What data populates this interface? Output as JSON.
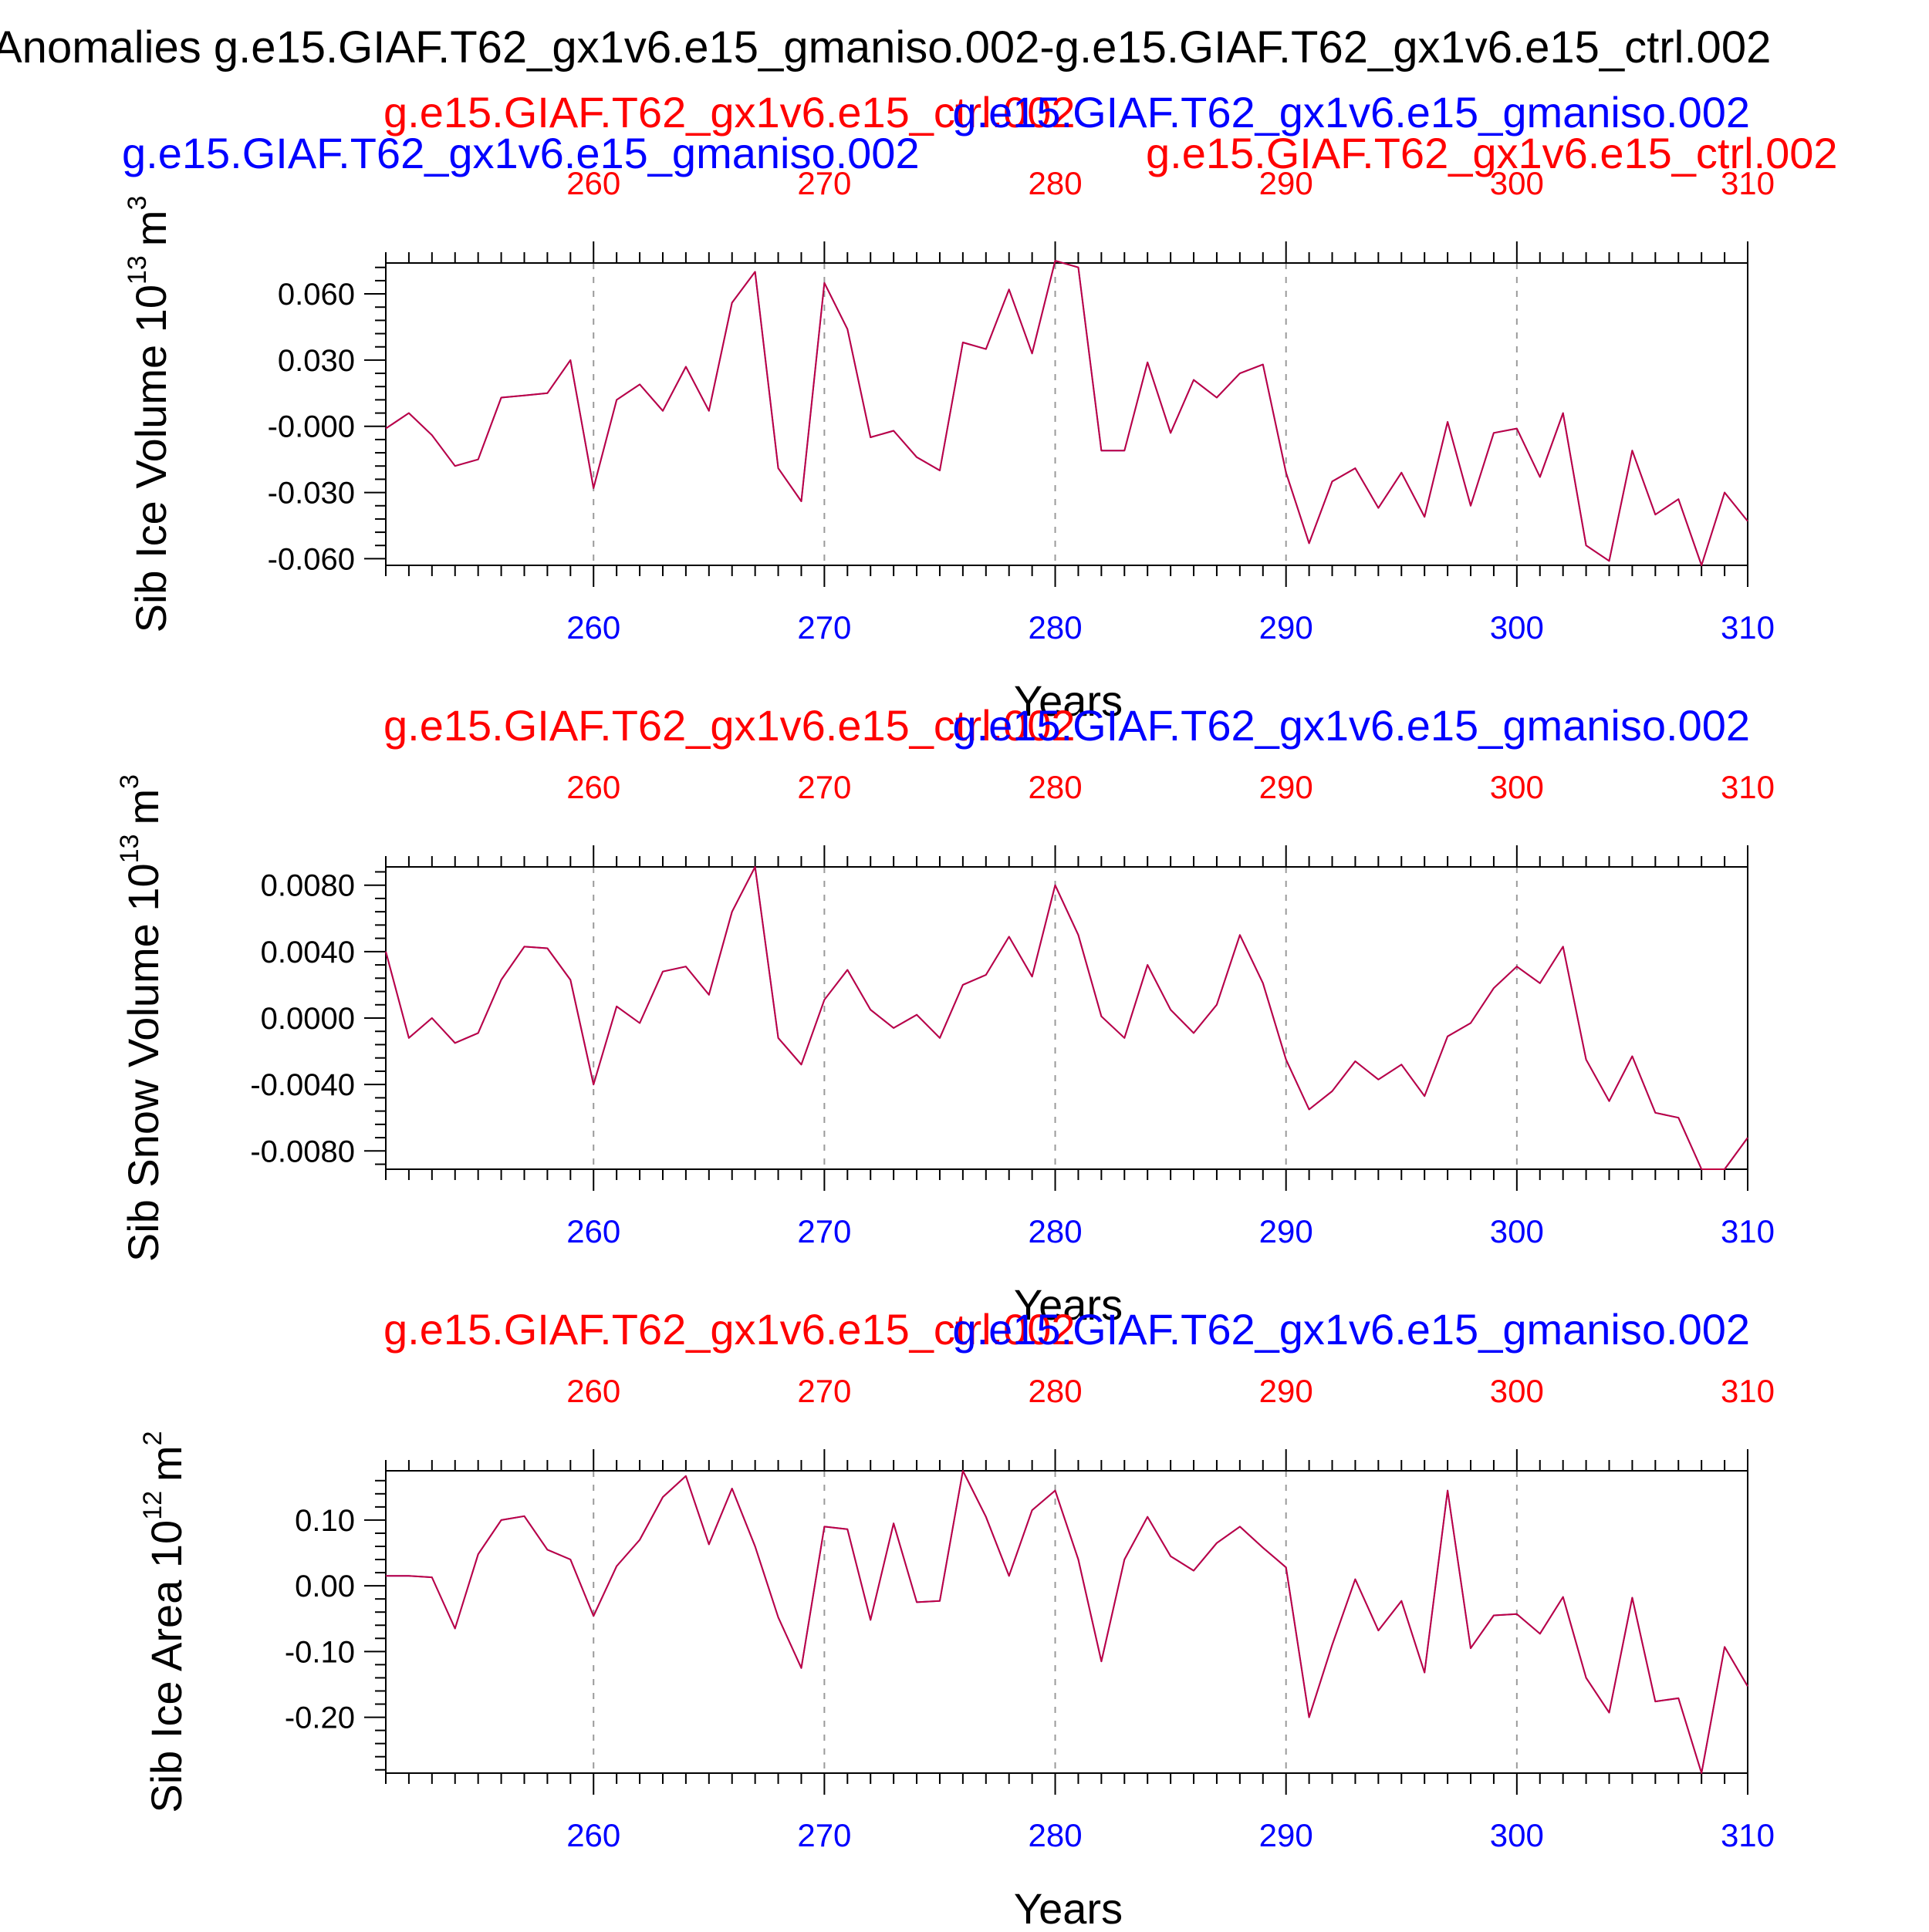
{
  "main_title": "Anomalies g.e15.GIAF.T62_gx1v6.e15_gmaniso.002-g.e15.GIAF.T62_gx1v6.e15_ctrl.002",
  "colors": {
    "case_a": "#0000ff",
    "case_b": "#ff0000",
    "line_a": "#0000ff",
    "line_b": "#ff0000",
    "axis": "#000000",
    "grid": "#9a9a9a"
  },
  "chart_data": [
    {
      "type": "line",
      "id": "ice-volume",
      "title_left": "g.e15.GIAF.T62_gx1v6.e15_gmaniso.002",
      "title_right": "g.e15.GIAF.T62_gx1v6.e15_ctrl.002",
      "top_title_red": "g.e15.GIAF.T62_gx1v6.e15_ctrl.002",
      "top_title_blue": "g.e15.GIAF.T62_gx1v6.e15_gmaniso.002",
      "ylabel_main": "Sib Ice Volume 10",
      "ylabel_exp": "13",
      "ylabel_unit": "m",
      "ylabel_unit_exp": "3",
      "xlabel": "Years",
      "xlim": [
        251,
        310
      ],
      "ylim": [
        -0.063,
        0.074
      ],
      "xticks": [
        260,
        270,
        280,
        290,
        300,
        310
      ],
      "xtick_labels": [
        "260",
        "270",
        "280",
        "290",
        "300",
        "310"
      ],
      "yticks": [
        0.06,
        0.03,
        0.0,
        -0.03,
        -0.06
      ],
      "ytick_labels": [
        "0.060",
        "0.030",
        "-0.000",
        "-0.030",
        "-0.060"
      ],
      "x": [
        251,
        252,
        253,
        254,
        255,
        256,
        257,
        258,
        259,
        260,
        261,
        262,
        263,
        264,
        265,
        266,
        267,
        268,
        269,
        270,
        271,
        272,
        273,
        274,
        275,
        276,
        277,
        278,
        279,
        280,
        281,
        282,
        283,
        284,
        285,
        286,
        287,
        288,
        289,
        290,
        291,
        292,
        293,
        294,
        295,
        296,
        297,
        298,
        299,
        300,
        301,
        302,
        303,
        304,
        305,
        306,
        307,
        308,
        309,
        310
      ],
      "series": [
        {
          "name": "g.e15.GIAF.T62_gx1v6.e15_gmaniso.002",
          "values": [
            -0.001,
            0.006,
            -0.004,
            -0.018,
            -0.015,
            0.013,
            0.014,
            0.015,
            0.03,
            -0.028,
            0.012,
            0.019,
            0.007,
            0.027,
            0.007,
            0.056,
            0.07,
            -0.019,
            -0.034,
            0.065,
            0.044,
            -0.005,
            -0.002,
            -0.014,
            -0.02,
            0.038,
            0.035,
            0.062,
            0.033,
            0.075,
            0.072,
            -0.011,
            -0.011,
            0.029,
            -0.003,
            0.021,
            0.013,
            0.024,
            0.028,
            -0.021,
            -0.053,
            -0.025,
            -0.019,
            -0.037,
            -0.021,
            -0.041,
            0.002,
            -0.036,
            -0.003,
            -0.001,
            -0.023,
            0.006,
            -0.054,
            -0.061,
            -0.011,
            -0.04,
            -0.033,
            -0.063,
            -0.03,
            -0.043
          ]
        },
        {
          "name": "g.e15.GIAF.T62_gx1v6.e15_ctrl.002",
          "values": [
            -0.001,
            0.006,
            -0.004,
            -0.018,
            -0.015,
            0.013,
            0.014,
            0.015,
            0.03,
            -0.028,
            0.012,
            0.019,
            0.007,
            0.027,
            0.007,
            0.056,
            0.07,
            -0.019,
            -0.034,
            0.065,
            0.044,
            -0.005,
            -0.002,
            -0.014,
            -0.02,
            0.038,
            0.035,
            0.062,
            0.033,
            0.075,
            0.072,
            -0.011,
            -0.011,
            0.029,
            -0.003,
            0.021,
            0.013,
            0.024,
            0.028,
            -0.021,
            -0.053,
            -0.025,
            -0.019,
            -0.037,
            -0.021,
            -0.041,
            0.002,
            -0.036,
            -0.003,
            -0.001,
            -0.023,
            0.006,
            -0.054,
            -0.061,
            -0.011,
            -0.04,
            -0.033,
            -0.063,
            -0.03,
            -0.043
          ]
        }
      ]
    },
    {
      "type": "line",
      "id": "snow-volume",
      "top_title_red": "g.e15.GIAF.T62_gx1v6.e15_ctrl.002",
      "top_title_blue": "g.e15.GIAF.T62_gx1v6.e15_gmaniso.002",
      "ylabel_main": "Sib Snow Volume 10",
      "ylabel_exp": "13",
      "ylabel_unit": "m",
      "ylabel_unit_exp": "3",
      "xlabel": "Years",
      "xlim": [
        251,
        310
      ],
      "ylim": [
        -0.0091,
        0.0091
      ],
      "xticks": [
        260,
        270,
        280,
        290,
        300,
        310
      ],
      "xtick_labels": [
        "260",
        "270",
        "280",
        "290",
        "300",
        "310"
      ],
      "yticks": [
        0.008,
        0.004,
        0.0,
        -0.004,
        -0.008
      ],
      "ytick_labels": [
        "0.0080",
        "0.0040",
        "0.0000",
        "-0.0040",
        "-0.0080"
      ],
      "x": [
        251,
        252,
        253,
        254,
        255,
        256,
        257,
        258,
        259,
        260,
        261,
        262,
        263,
        264,
        265,
        266,
        267,
        268,
        269,
        270,
        271,
        272,
        273,
        274,
        275,
        276,
        277,
        278,
        279,
        280,
        281,
        282,
        283,
        284,
        285,
        286,
        287,
        288,
        289,
        290,
        291,
        292,
        293,
        294,
        295,
        296,
        297,
        298,
        299,
        300,
        301,
        302,
        303,
        304,
        305,
        306,
        307,
        308,
        309,
        310
      ],
      "series": [
        {
          "name": "g.e15.GIAF.T62_gx1v6.e15_gmaniso.002",
          "values": [
            0.004,
            -0.0012,
            0.0,
            -0.0015,
            -0.0009,
            0.0023,
            0.0043,
            0.0042,
            0.0023,
            -0.004,
            0.0007,
            -0.0003,
            0.0028,
            0.0031,
            0.0014,
            0.0064,
            0.0091,
            -0.0012,
            -0.0028,
            0.0011,
            0.0029,
            0.0005,
            -0.0006,
            0.0002,
            -0.0012,
            0.002,
            0.0026,
            0.0049,
            0.0025,
            0.008,
            0.005,
            0.0001,
            -0.0012,
            0.0032,
            0.0005,
            -0.0009,
            0.0008,
            0.005,
            0.0021,
            -0.0025,
            -0.0055,
            -0.0044,
            -0.0026,
            -0.0037,
            -0.0028,
            -0.0047,
            -0.0011,
            -0.0003,
            0.0018,
            0.0031,
            0.0021,
            0.0043,
            -0.0025,
            -0.005,
            -0.0023,
            -0.0057,
            -0.006,
            -0.0091,
            -0.0091,
            -0.0072
          ]
        },
        {
          "name": "g.e15.GIAF.T62_gx1v6.e15_ctrl.002",
          "values": [
            0.004,
            -0.0012,
            0.0,
            -0.0015,
            -0.0009,
            0.0023,
            0.0043,
            0.0042,
            0.0023,
            -0.004,
            0.0007,
            -0.0003,
            0.0028,
            0.0031,
            0.0014,
            0.0064,
            0.0091,
            -0.0012,
            -0.0028,
            0.0011,
            0.0029,
            0.0005,
            -0.0006,
            0.0002,
            -0.0012,
            0.002,
            0.0026,
            0.0049,
            0.0025,
            0.008,
            0.005,
            0.0001,
            -0.0012,
            0.0032,
            0.0005,
            -0.0009,
            0.0008,
            0.005,
            0.0021,
            -0.0025,
            -0.0055,
            -0.0044,
            -0.0026,
            -0.0037,
            -0.0028,
            -0.0047,
            -0.0011,
            -0.0003,
            0.0018,
            0.0031,
            0.0021,
            0.0043,
            -0.0025,
            -0.005,
            -0.0023,
            -0.0057,
            -0.006,
            -0.0091,
            -0.0091,
            -0.0072
          ]
        }
      ]
    },
    {
      "type": "line",
      "id": "ice-area",
      "top_title_red": "g.e15.GIAF.T62_gx1v6.e15_ctrl.002",
      "top_title_blue": "g.e15.GIAF.T62_gx1v6.e15_gmaniso.002",
      "ylabel_main": "Sib Ice Area 10",
      "ylabel_exp": "12",
      "ylabel_unit": "m",
      "ylabel_unit_exp": "2",
      "xlabel": "Years",
      "xlim": [
        251,
        310
      ],
      "ylim": [
        -0.285,
        0.175
      ],
      "xticks": [
        260,
        270,
        280,
        290,
        300,
        310
      ],
      "xtick_labels": [
        "260",
        "270",
        "280",
        "290",
        "300",
        "310"
      ],
      "yticks": [
        0.1,
        0.0,
        -0.1,
        -0.2
      ],
      "ytick_labels": [
        "0.10",
        "0.00",
        "-0.10",
        "-0.20"
      ],
      "x": [
        251,
        252,
        253,
        254,
        255,
        256,
        257,
        258,
        259,
        260,
        261,
        262,
        263,
        264,
        265,
        266,
        267,
        268,
        269,
        270,
        271,
        272,
        273,
        274,
        275,
        276,
        277,
        278,
        279,
        280,
        281,
        282,
        283,
        284,
        285,
        286,
        287,
        288,
        289,
        290,
        291,
        292,
        293,
        294,
        295,
        296,
        297,
        298,
        299,
        300,
        301,
        302,
        303,
        304,
        305,
        306,
        307,
        308,
        309,
        310
      ],
      "series": [
        {
          "name": "g.e15.GIAF.T62_gx1v6.e15_gmaniso.002",
          "values": [
            0.015,
            0.015,
            0.013,
            -0.065,
            0.048,
            0.1,
            0.106,
            0.055,
            0.04,
            -0.046,
            0.03,
            0.07,
            0.135,
            0.167,
            0.063,
            0.148,
            0.06,
            -0.048,
            -0.125,
            0.09,
            0.086,
            -0.052,
            0.095,
            -0.025,
            -0.023,
            0.175,
            0.105,
            0.015,
            0.115,
            0.145,
            0.04,
            -0.115,
            0.04,
            0.105,
            0.045,
            0.023,
            0.065,
            0.09,
            0.058,
            0.028,
            -0.2,
            -0.09,
            0.01,
            -0.068,
            -0.023,
            -0.132,
            0.145,
            -0.095,
            -0.045,
            -0.043,
            -0.073,
            -0.017,
            -0.14,
            -0.193,
            -0.018,
            -0.176,
            -0.171,
            -0.285,
            -0.093,
            -0.153
          ]
        },
        {
          "name": "g.e15.GIAF.T62_gx1v6.e15_ctrl.002",
          "values": [
            0.015,
            0.015,
            0.013,
            -0.065,
            0.048,
            0.1,
            0.106,
            0.055,
            0.04,
            -0.046,
            0.03,
            0.07,
            0.135,
            0.167,
            0.063,
            0.148,
            0.06,
            -0.048,
            -0.125,
            0.09,
            0.086,
            -0.052,
            0.095,
            -0.025,
            -0.023,
            0.175,
            0.105,
            0.015,
            0.115,
            0.145,
            0.04,
            -0.115,
            0.04,
            0.105,
            0.045,
            0.023,
            0.065,
            0.09,
            0.058,
            0.028,
            -0.2,
            -0.09,
            0.01,
            -0.068,
            -0.023,
            -0.132,
            0.145,
            -0.095,
            -0.045,
            -0.043,
            -0.073,
            -0.017,
            -0.14,
            -0.193,
            -0.018,
            -0.176,
            -0.171,
            -0.285,
            -0.093,
            -0.153
          ]
        }
      ]
    }
  ]
}
